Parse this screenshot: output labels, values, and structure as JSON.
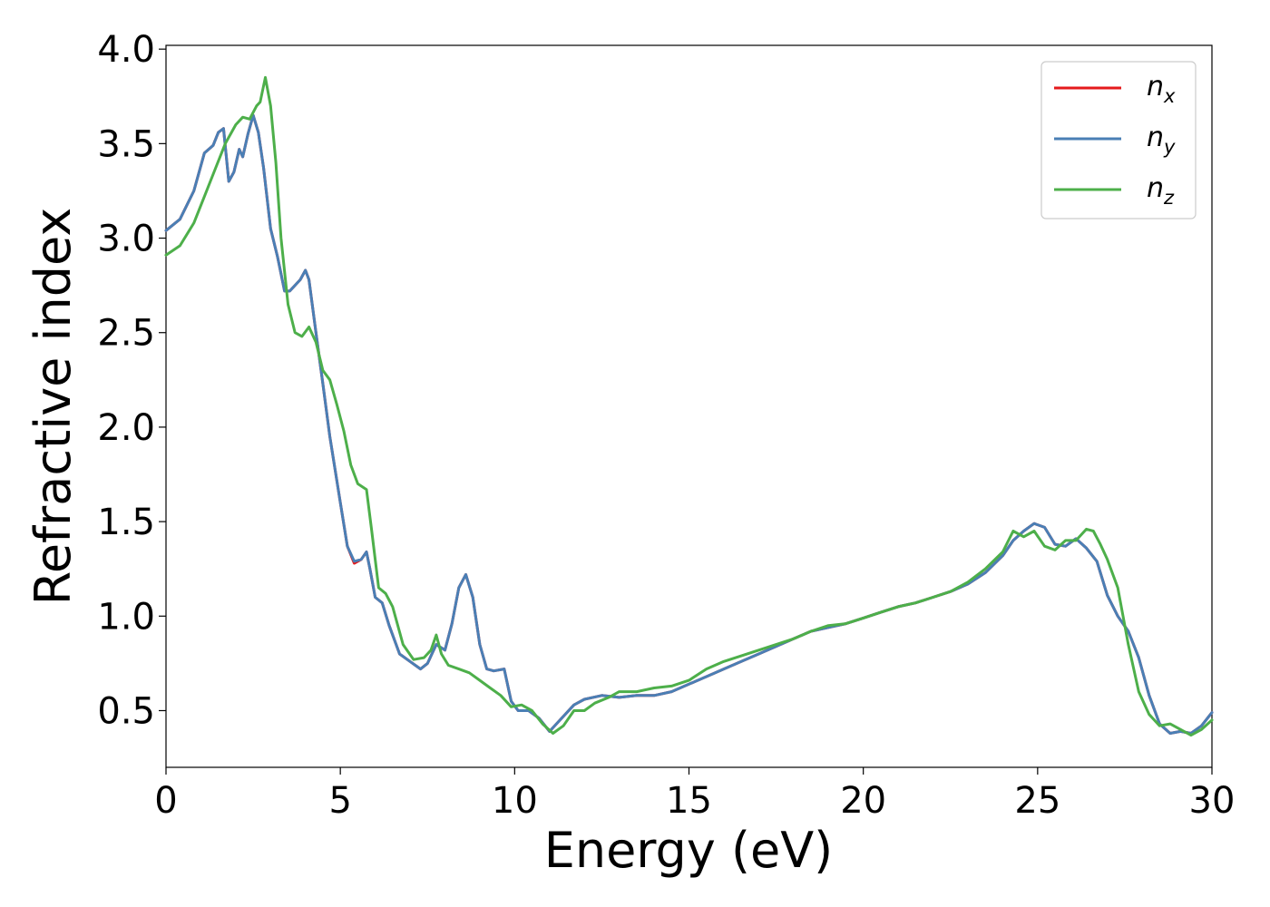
{
  "chart_data": {
    "type": "line",
    "title": "",
    "xlabel": "Energy (eV)",
    "ylabel": "Refractive index",
    "xlim": [
      0,
      30
    ],
    "ylim": [
      0.2,
      4.02
    ],
    "xticks": [
      0,
      5,
      10,
      15,
      20,
      25,
      30
    ],
    "xtick_labels": [
      "0",
      "5",
      "10",
      "15",
      "20",
      "25",
      "30"
    ],
    "yticks": [
      0.5,
      1.0,
      1.5,
      2.0,
      2.5,
      3.0,
      3.5,
      4.0
    ],
    "ytick_labels": [
      "0.5",
      "1.0",
      "1.5",
      "2.0",
      "2.5",
      "3.0",
      "3.5",
      "4.0"
    ],
    "grid": false,
    "legend_position": "top-right",
    "series": [
      {
        "name": "n_x",
        "label_base": "n",
        "label_sub": "x",
        "color": "#e41a1c",
        "x": [
          0,
          0.4,
          0.8,
          1.1,
          1.35,
          1.5,
          1.65,
          1.8,
          1.95,
          2.1,
          2.2,
          2.35,
          2.5,
          2.65,
          2.8,
          3.0,
          3.2,
          3.4,
          3.55,
          3.7,
          3.85,
          4.0,
          4.1,
          4.3,
          4.5,
          4.7,
          5.0,
          5.2,
          5.4,
          5.6,
          5.75,
          5.85,
          6.0,
          6.2,
          6.4,
          6.7,
          7.0,
          7.3,
          7.5,
          7.75,
          8.0,
          8.2,
          8.4,
          8.6,
          8.8,
          9.0,
          9.2,
          9.4,
          9.7,
          9.9,
          10.1,
          10.4,
          10.7,
          11.0,
          11.3,
          11.7,
          12.0,
          12.5,
          13.0,
          13.5,
          14.0,
          14.5,
          15.0,
          15.5,
          16.0,
          16.5,
          17.0,
          17.5,
          18.0,
          18.5,
          19.0,
          19.5,
          20.0,
          20.5,
          21.0,
          21.5,
          22.0,
          22.5,
          23.0,
          23.5,
          24.0,
          24.3,
          24.6,
          24.9,
          25.2,
          25.5,
          25.8,
          26.1,
          26.4,
          26.7,
          27.0,
          27.3,
          27.6,
          27.9,
          28.2,
          28.5,
          28.8,
          29.1,
          29.4,
          29.7,
          30.0
        ],
        "y": [
          3.04,
          3.1,
          3.25,
          3.45,
          3.49,
          3.56,
          3.58,
          3.3,
          3.35,
          3.47,
          3.43,
          3.55,
          3.65,
          3.56,
          3.37,
          3.05,
          2.9,
          2.72,
          2.72,
          2.75,
          2.78,
          2.83,
          2.78,
          2.5,
          2.23,
          1.95,
          1.6,
          1.37,
          1.28,
          1.3,
          1.34,
          1.25,
          1.1,
          1.07,
          0.95,
          0.8,
          0.76,
          0.72,
          0.75,
          0.85,
          0.82,
          0.96,
          1.15,
          1.22,
          1.1,
          0.85,
          0.72,
          0.71,
          0.72,
          0.55,
          0.5,
          0.5,
          0.46,
          0.39,
          0.45,
          0.53,
          0.56,
          0.58,
          0.57,
          0.58,
          0.58,
          0.6,
          0.64,
          0.68,
          0.72,
          0.76,
          0.8,
          0.84,
          0.88,
          0.92,
          0.94,
          0.96,
          0.99,
          1.02,
          1.05,
          1.07,
          1.1,
          1.13,
          1.17,
          1.23,
          1.32,
          1.4,
          1.45,
          1.49,
          1.47,
          1.38,
          1.37,
          1.41,
          1.36,
          1.29,
          1.11,
          1.0,
          0.92,
          0.78,
          0.58,
          0.43,
          0.38,
          0.39,
          0.38,
          0.42,
          0.49
        ]
      },
      {
        "name": "n_y",
        "label_base": "n",
        "label_sub": "y",
        "color": "#4a7fb5",
        "x": [
          0,
          0.4,
          0.8,
          1.1,
          1.35,
          1.5,
          1.65,
          1.8,
          1.95,
          2.1,
          2.2,
          2.35,
          2.5,
          2.65,
          2.8,
          3.0,
          3.2,
          3.4,
          3.55,
          3.7,
          3.85,
          4.0,
          4.1,
          4.3,
          4.5,
          4.7,
          5.0,
          5.2,
          5.4,
          5.6,
          5.75,
          5.85,
          6.0,
          6.2,
          6.4,
          6.7,
          7.0,
          7.3,
          7.5,
          7.75,
          8.0,
          8.2,
          8.4,
          8.6,
          8.8,
          9.0,
          9.2,
          9.4,
          9.7,
          9.9,
          10.1,
          10.4,
          10.7,
          11.0,
          11.3,
          11.7,
          12.0,
          12.5,
          13.0,
          13.5,
          14.0,
          14.5,
          15.0,
          15.5,
          16.0,
          16.5,
          17.0,
          17.5,
          18.0,
          18.5,
          19.0,
          19.5,
          20.0,
          20.5,
          21.0,
          21.5,
          22.0,
          22.5,
          23.0,
          23.5,
          24.0,
          24.3,
          24.6,
          24.9,
          25.2,
          25.5,
          25.8,
          26.1,
          26.4,
          26.7,
          27.0,
          27.3,
          27.6,
          27.9,
          28.2,
          28.5,
          28.8,
          29.1,
          29.4,
          29.7,
          30.0
        ],
        "y": [
          3.04,
          3.1,
          3.25,
          3.45,
          3.49,
          3.56,
          3.58,
          3.3,
          3.35,
          3.47,
          3.43,
          3.55,
          3.65,
          3.56,
          3.37,
          3.05,
          2.9,
          2.72,
          2.72,
          2.75,
          2.78,
          2.83,
          2.78,
          2.5,
          2.23,
          1.95,
          1.6,
          1.37,
          1.29,
          1.3,
          1.34,
          1.25,
          1.1,
          1.07,
          0.95,
          0.8,
          0.76,
          0.72,
          0.75,
          0.85,
          0.82,
          0.96,
          1.15,
          1.22,
          1.1,
          0.85,
          0.72,
          0.71,
          0.72,
          0.55,
          0.5,
          0.5,
          0.46,
          0.39,
          0.45,
          0.53,
          0.56,
          0.58,
          0.57,
          0.58,
          0.58,
          0.6,
          0.64,
          0.68,
          0.72,
          0.76,
          0.8,
          0.84,
          0.88,
          0.92,
          0.94,
          0.96,
          0.99,
          1.02,
          1.05,
          1.07,
          1.1,
          1.13,
          1.17,
          1.23,
          1.32,
          1.4,
          1.45,
          1.49,
          1.47,
          1.38,
          1.37,
          1.41,
          1.36,
          1.29,
          1.11,
          1.0,
          0.92,
          0.78,
          0.58,
          0.43,
          0.38,
          0.39,
          0.38,
          0.42,
          0.49
        ]
      },
      {
        "name": "n_z",
        "label_base": "n",
        "label_sub": "z",
        "color": "#4daf4a",
        "x": [
          0,
          0.4,
          0.8,
          1.1,
          1.4,
          1.7,
          2.0,
          2.2,
          2.4,
          2.6,
          2.7,
          2.85,
          3.0,
          3.15,
          3.3,
          3.5,
          3.7,
          3.9,
          4.1,
          4.3,
          4.5,
          4.7,
          4.9,
          5.1,
          5.3,
          5.5,
          5.75,
          5.9,
          6.1,
          6.3,
          6.5,
          6.8,
          7.1,
          7.4,
          7.6,
          7.75,
          7.9,
          8.1,
          8.4,
          8.7,
          9.0,
          9.3,
          9.6,
          9.9,
          10.2,
          10.5,
          10.8,
          11.1,
          11.4,
          11.7,
          12.0,
          12.3,
          12.7,
          13.0,
          13.5,
          14.0,
          14.5,
          15.0,
          15.5,
          16.0,
          16.5,
          17.0,
          17.5,
          18.0,
          18.5,
          19.0,
          19.5,
          20.0,
          20.5,
          21.0,
          21.5,
          22.0,
          22.5,
          23.0,
          23.5,
          24.0,
          24.3,
          24.6,
          24.9,
          25.2,
          25.5,
          25.8,
          26.1,
          26.4,
          26.6,
          26.8,
          27.0,
          27.3,
          27.6,
          27.9,
          28.2,
          28.5,
          28.8,
          29.1,
          29.4,
          29.7,
          30.0
        ],
        "y": [
          2.91,
          2.96,
          3.08,
          3.22,
          3.36,
          3.5,
          3.6,
          3.64,
          3.63,
          3.7,
          3.72,
          3.85,
          3.7,
          3.4,
          3.0,
          2.65,
          2.5,
          2.48,
          2.53,
          2.45,
          2.3,
          2.25,
          2.12,
          1.98,
          1.8,
          1.7,
          1.67,
          1.45,
          1.15,
          1.12,
          1.05,
          0.85,
          0.77,
          0.78,
          0.82,
          0.9,
          0.8,
          0.74,
          0.72,
          0.7,
          0.66,
          0.62,
          0.58,
          0.52,
          0.53,
          0.5,
          0.43,
          0.38,
          0.42,
          0.5,
          0.5,
          0.54,
          0.57,
          0.6,
          0.6,
          0.62,
          0.63,
          0.66,
          0.72,
          0.76,
          0.79,
          0.82,
          0.85,
          0.88,
          0.92,
          0.95,
          0.96,
          0.99,
          1.02,
          1.05,
          1.07,
          1.1,
          1.13,
          1.18,
          1.25,
          1.34,
          1.45,
          1.42,
          1.45,
          1.37,
          1.35,
          1.4,
          1.4,
          1.46,
          1.45,
          1.38,
          1.3,
          1.15,
          0.85,
          0.6,
          0.48,
          0.42,
          0.43,
          0.4,
          0.37,
          0.4,
          0.45
        ]
      }
    ]
  }
}
